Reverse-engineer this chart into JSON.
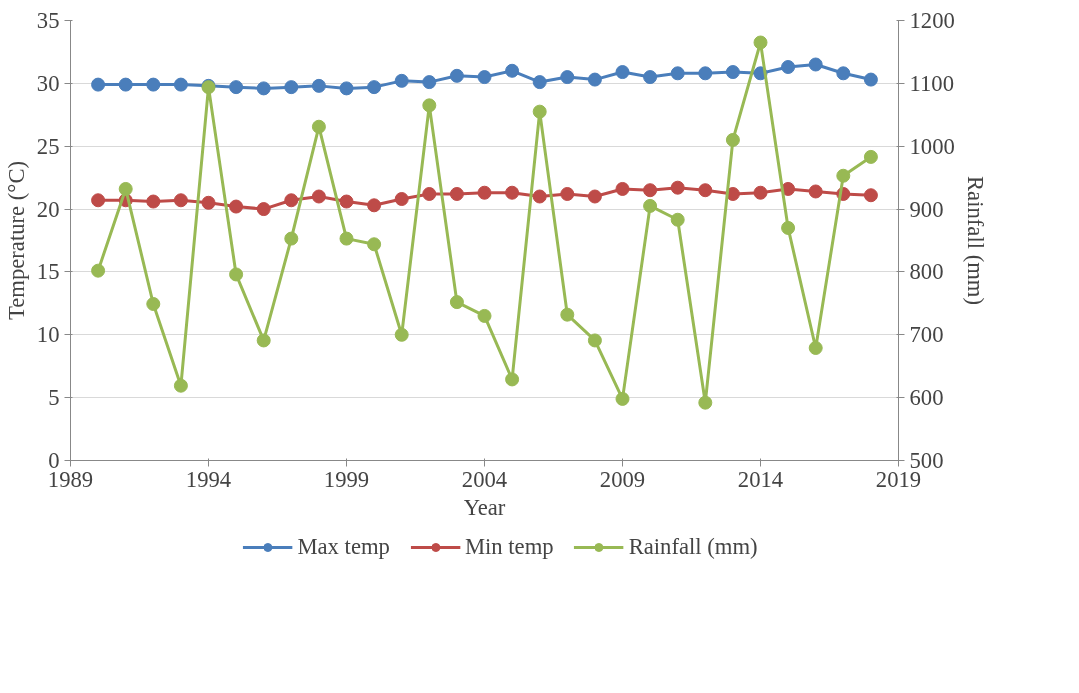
{
  "chart_data": {
    "type": "line",
    "xlabel": "Year",
    "ylabel": "Temperature (°C)",
    "y2label": "Rainfall (mm)",
    "x": [
      1990,
      1991,
      1992,
      1993,
      1994,
      1995,
      1996,
      1997,
      1998,
      1999,
      2000,
      2001,
      2002,
      2003,
      2004,
      2005,
      2006,
      2007,
      2008,
      2009,
      2010,
      2011,
      2012,
      2013,
      2014,
      2015,
      2016,
      2017,
      2018
    ],
    "xlim": [
      1989,
      2019
    ],
    "xticks": [
      1989,
      1994,
      1999,
      2004,
      2009,
      2014,
      2019
    ],
    "ylim": [
      0,
      35
    ],
    "yticks": [
      0,
      5,
      10,
      15,
      20,
      25,
      30,
      35
    ],
    "y2lim": [
      500,
      1200
    ],
    "y2ticks": [
      500,
      600,
      700,
      800,
      900,
      1000,
      1100,
      1200
    ],
    "grid": "y",
    "legend": "bottom",
    "marker": "circle",
    "line_style": "solid",
    "series": [
      {
        "name": "Max temp",
        "color": "#4a7ebb",
        "values": [
          29.9,
          29.9,
          29.9,
          29.9,
          29.8,
          29.7,
          29.6,
          29.7,
          29.8,
          29.6,
          29.7,
          30.2,
          30.1,
          30.6,
          30.5,
          31.0,
          30.1,
          30.5,
          30.3,
          30.9,
          30.5,
          30.8,
          30.8,
          30.9,
          30.8,
          31.3,
          31.5,
          30.8,
          30.3
        ]
      },
      {
        "name": "Min temp",
        "color": "#be4b48",
        "values": [
          20.7,
          20.7,
          20.6,
          20.7,
          20.5,
          20.2,
          20.0,
          20.7,
          21.0,
          20.6,
          20.3,
          20.8,
          21.2,
          21.2,
          21.3,
          21.3,
          21.0,
          21.2,
          21.0,
          21.6,
          21.5,
          21.7,
          21.5,
          21.2,
          21.3,
          21.6,
          21.4,
          21.2,
          21.1
        ]
      },
      {
        "name": "Rainfall (mm)",
        "color": "#98b954",
        "axis": "y2",
        "values": [
          802,
          932,
          749,
          619,
          1094,
          796,
          691,
          853,
          1031,
          853,
          844,
          700,
          1065,
          752,
          730,
          629,
          1055,
          732,
          691,
          598,
          905,
          883,
          592,
          1010,
          1165,
          870,
          679,
          953,
          983
        ]
      }
    ]
  }
}
